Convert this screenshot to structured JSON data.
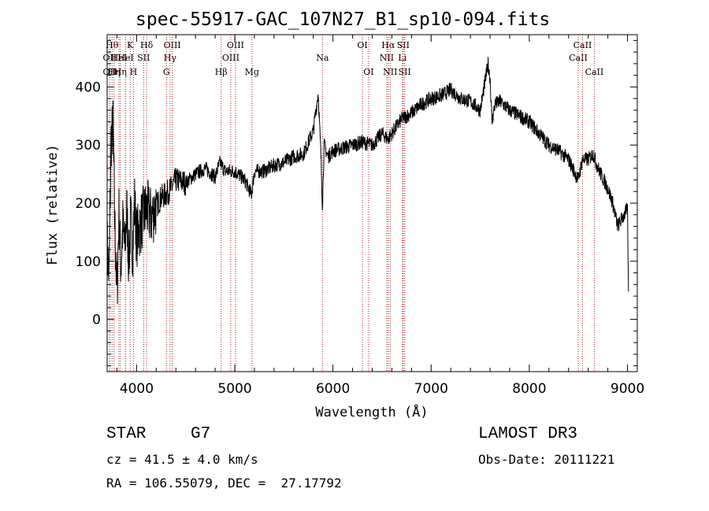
{
  "chart_data": {
    "type": "line",
    "title": "spec-55917-GAC_107N27_B1_sp10-094.fits",
    "xlabel": "Wavelength (Å)",
    "ylabel": "Flux (relative)",
    "xlim": [
      3700,
      9100
    ],
    "ylim": [
      -90,
      490
    ],
    "xticks": [
      4000,
      5000,
      6000,
      7000,
      8000,
      9000
    ],
    "yticks": [
      0,
      100,
      200,
      300,
      400
    ],
    "xtick_labels": [
      "4000",
      "5000",
      "6000",
      "7000",
      "8000",
      "9000"
    ],
    "ytick_labels": [
      "0",
      "100",
      "200",
      "300",
      "400"
    ],
    "grid": false,
    "series": [
      {
        "name": "flux",
        "x": [
          3700,
          3720,
          3740,
          3760,
          3780,
          3800,
          3820,
          3840,
          3860,
          3880,
          3900,
          3920,
          3940,
          3960,
          3980,
          4000,
          4050,
          4100,
          4150,
          4200,
          4250,
          4300,
          4350,
          4400,
          4500,
          4600,
          4700,
          4800,
          4850,
          4900,
          5000,
          5100,
          5170,
          5200,
          5300,
          5400,
          5500,
          5600,
          5700,
          5800,
          5850,
          5880,
          5893,
          5910,
          5950,
          6000,
          6100,
          6200,
          6300,
          6400,
          6500,
          6560,
          6600,
          6700,
          6800,
          6900,
          7000,
          7100,
          7200,
          7300,
          7400,
          7500,
          7580,
          7600,
          7620,
          7650,
          7700,
          7800,
          7900,
          8000,
          8100,
          8200,
          8300,
          8400,
          8498,
          8540,
          8600,
          8650,
          8700,
          8800,
          8850,
          8900,
          8950,
          9000,
          9010
        ],
        "y": [
          130,
          70,
          310,
          330,
          150,
          40,
          180,
          90,
          160,
          120,
          190,
          100,
          170,
          120,
          200,
          140,
          170,
          190,
          175,
          195,
          210,
          215,
          225,
          240,
          235,
          250,
          260,
          245,
          270,
          255,
          255,
          240,
          215,
          255,
          255,
          265,
          270,
          280,
          285,
          325,
          390,
          270,
          195,
          300,
          280,
          290,
          295,
          300,
          305,
          300,
          320,
          310,
          320,
          345,
          355,
          370,
          380,
          385,
          395,
          380,
          375,
          360,
          440,
          415,
          340,
          370,
          375,
          360,
          350,
          340,
          320,
          300,
          290,
          275,
          240,
          275,
          275,
          285,
          260,
          225,
          200,
          160,
          175,
          190,
          40
        ]
      }
    ],
    "line_markers": [
      {
        "wavelength": 3727,
        "label": "OII",
        "row": 2
      },
      {
        "wavelength": 3727,
        "label": "OII",
        "row": 3
      },
      {
        "wavelength": 3750,
        "label": "Hθ",
        "row": 1
      },
      {
        "wavelength": 3771,
        "label": "Hη",
        "row": 3
      },
      {
        "wavelength": 3820,
        "label": "HeI",
        "row": 2
      },
      {
        "wavelength": 3835,
        "label": "Hη",
        "row": 3
      },
      {
        "wavelength": 3889,
        "label": "HeI",
        "row": 2
      },
      {
        "wavelength": 3934,
        "label": "K",
        "row": 1
      },
      {
        "wavelength": 3968,
        "label": "H",
        "row": 3
      },
      {
        "wavelength": 4072,
        "label": "SII",
        "row": 2
      },
      {
        "wavelength": 4102,
        "label": "Hδ",
        "row": 1
      },
      {
        "wavelength": 4304,
        "label": "G",
        "row": 3
      },
      {
        "wavelength": 4341,
        "label": "Hγ",
        "row": 2
      },
      {
        "wavelength": 4363,
        "label": "OIII",
        "row": 1
      },
      {
        "wavelength": 4861,
        "label": "Hβ",
        "row": 3
      },
      {
        "wavelength": 4959,
        "label": "OIII",
        "row": 2
      },
      {
        "wavelength": 5007,
        "label": "OIII",
        "row": 1
      },
      {
        "wavelength": 5175,
        "label": "Mg",
        "row": 3
      },
      {
        "wavelength": 5893,
        "label": "Na",
        "row": 2
      },
      {
        "wavelength": 6300,
        "label": "OI",
        "row": 1
      },
      {
        "wavelength": 6363,
        "label": "OI",
        "row": 3
      },
      {
        "wavelength": 6548,
        "label": "NII",
        "row": 2
      },
      {
        "wavelength": 6563,
        "label": "Hα",
        "row": 1
      },
      {
        "wavelength": 6583,
        "label": "NII",
        "row": 3
      },
      {
        "wavelength": 6707,
        "label": "Li",
        "row": 2
      },
      {
        "wavelength": 6716,
        "label": "SII",
        "row": 1
      },
      {
        "wavelength": 6731,
        "label": "SII",
        "row": 3
      },
      {
        "wavelength": 8498,
        "label": "CaII",
        "row": 2
      },
      {
        "wavelength": 8542,
        "label": "CaII",
        "row": 1
      },
      {
        "wavelength": 8662,
        "label": "CaII",
        "row": 3
      }
    ]
  },
  "info": {
    "object_class": "STAR",
    "subclass": "G7",
    "survey": "LAMOST DR3",
    "redshift_line": "cz = 41.5 ± 4.0 km/s",
    "obs_date": "Obs-Date: 20111221",
    "coords": "RA = 106.55079, DEC =  27.17792"
  },
  "colors": {
    "spectrum": "#000000",
    "marker_line": "#b22222",
    "axes": "#000000"
  }
}
